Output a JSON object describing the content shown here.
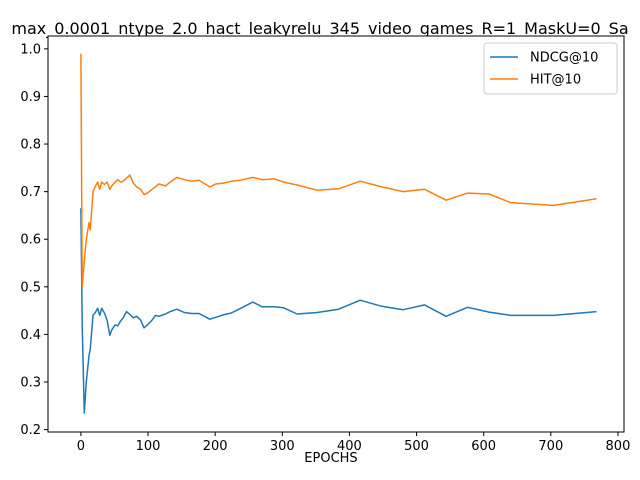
{
  "chart_data": {
    "type": "line",
    "title": "max_0.0001_ntype_2.0_hact_leakyrelu_345_video_games_R=1_MaskU=0_Sa",
    "xlabel": "EPOCHS",
    "ylabel": "",
    "xlim": [
      -49,
      809
    ],
    "ylim": [
      0.195,
      1.027
    ],
    "xticks": [
      0,
      100,
      200,
      300,
      400,
      500,
      600,
      700,
      800
    ],
    "yticks": [
      0.2,
      0.3,
      0.4,
      0.5,
      0.6,
      0.7,
      0.8,
      0.9,
      1.0
    ],
    "xtick_labels": [
      "0",
      "100",
      "200",
      "300",
      "400",
      "500",
      "600",
      "700",
      "800"
    ],
    "ytick_labels": [
      "0.2",
      "0.3",
      "0.4",
      "0.5",
      "0.6",
      "0.7",
      "0.8",
      "0.9",
      "1.0"
    ],
    "grid": false,
    "legend_position": "top-right",
    "series": [
      {
        "name": "NDCG@10",
        "color": "#1f77b4",
        "x": [
          0,
          2,
          5,
          8,
          12,
          14,
          18,
          21,
          25,
          28,
          31,
          35,
          39,
          43,
          46,
          51,
          55,
          59,
          63,
          68,
          73,
          78,
          83,
          89,
          94,
          99,
          106,
          111,
          116,
          126,
          133,
          143,
          154,
          165,
          176,
          192,
          201,
          212,
          224,
          238,
          256,
          270,
          288,
          302,
          322,
          352,
          384,
          416,
          448,
          480,
          512,
          544,
          576,
          608,
          640,
          672,
          704,
          736,
          768
        ],
        "y": [
          0.665,
          0.42,
          0.235,
          0.3,
          0.355,
          0.37,
          0.44,
          0.445,
          0.455,
          0.44,
          0.455,
          0.445,
          0.43,
          0.398,
          0.41,
          0.42,
          0.418,
          0.428,
          0.435,
          0.448,
          0.442,
          0.435,
          0.438,
          0.43,
          0.414,
          0.42,
          0.43,
          0.44,
          0.438,
          0.443,
          0.448,
          0.453,
          0.446,
          0.444,
          0.444,
          0.432,
          0.436,
          0.441,
          0.445,
          0.455,
          0.468,
          0.458,
          0.458,
          0.456,
          0.443,
          0.446,
          0.453,
          0.472,
          0.459,
          0.452,
          0.462,
          0.438,
          0.457,
          0.447,
          0.44,
          0.44,
          0.44,
          0.444,
          0.448
        ]
      },
      {
        "name": "HIT@10",
        "color": "#ff7f0e",
        "x": [
          0,
          2,
          5,
          8,
          12,
          14,
          18,
          21,
          25,
          28,
          31,
          35,
          39,
          43,
          46,
          51,
          55,
          59,
          63,
          68,
          73,
          78,
          83,
          89,
          94,
          99,
          106,
          111,
          116,
          126,
          133,
          143,
          154,
          165,
          176,
          192,
          201,
          212,
          224,
          238,
          256,
          270,
          288,
          302,
          322,
          352,
          384,
          416,
          448,
          480,
          512,
          544,
          576,
          608,
          640,
          672,
          704,
          736,
          768
        ],
        "y": [
          0.99,
          0.5,
          0.555,
          0.6,
          0.635,
          0.62,
          0.7,
          0.71,
          0.72,
          0.705,
          0.72,
          0.715,
          0.72,
          0.705,
          0.712,
          0.72,
          0.725,
          0.72,
          0.722,
          0.728,
          0.735,
          0.718,
          0.71,
          0.705,
          0.694,
          0.697,
          0.705,
          0.71,
          0.716,
          0.712,
          0.72,
          0.73,
          0.725,
          0.722,
          0.724,
          0.71,
          0.716,
          0.718,
          0.722,
          0.724,
          0.73,
          0.725,
          0.727,
          0.72,
          0.714,
          0.703,
          0.706,
          0.722,
          0.71,
          0.7,
          0.705,
          0.682,
          0.697,
          0.695,
          0.677,
          0.674,
          0.671,
          0.678,
          0.685
        ]
      }
    ]
  }
}
